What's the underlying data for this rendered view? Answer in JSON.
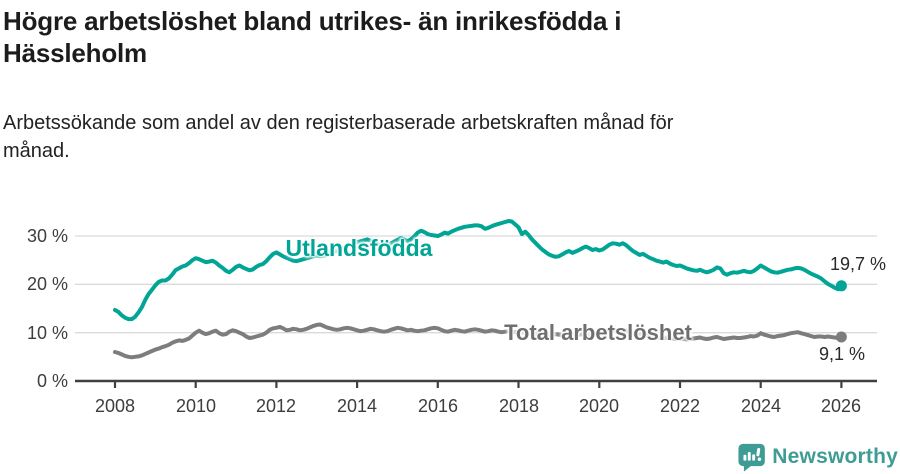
{
  "header": {
    "title_lines": [
      "Högre arbetslöshet bland utrikes- än inrikesfödda i",
      "Hässleholm"
    ],
    "subtitle_lines": [
      "Arbetssökande som andel av den registerbaserade arbetskraften månad för",
      "månad."
    ]
  },
  "chart_data": {
    "type": "line",
    "title": "Högre arbetslöshet bland utrikes- än inrikesfödda i Hässleholm",
    "subtitle": "Arbetssökande som andel av den registerbaserade arbetskraften månad för månad.",
    "unit": "%",
    "x_start": "2008-01",
    "x_end": "2026-01",
    "x_interval": "monthly",
    "ylim": [
      0,
      35
    ],
    "grid": "horizontal",
    "legend_position": "inline-labels",
    "y_ticks": [
      0,
      10,
      20,
      30
    ],
    "y_tick_labels": [
      "0 %",
      "10 %",
      "20 %",
      "30 %"
    ],
    "x_tick_years": [
      2008,
      2010,
      2012,
      2014,
      2016,
      2018,
      2020,
      2022,
      2024,
      2026
    ],
    "x_tick_labels": [
      "2008",
      "2010",
      "2012",
      "2014",
      "2016",
      "2018",
      "2020",
      "2022",
      "2024",
      "2026"
    ],
    "series": [
      {
        "name": "Utlandsfödda",
        "color": "#00a596",
        "end_value": 19.7,
        "end_label": "19,7 %",
        "values": [
          14.7,
          14.3,
          13.6,
          13.1,
          12.8,
          12.8,
          13.3,
          14.2,
          15.3,
          16.8,
          18.0,
          18.9,
          19.8,
          20.5,
          20.8,
          20.8,
          21.2,
          22.0,
          22.9,
          23.3,
          23.7,
          23.9,
          24.4,
          25.0,
          25.4,
          25.2,
          24.9,
          24.6,
          24.7,
          24.9,
          24.5,
          23.9,
          23.4,
          22.8,
          22.5,
          23.0,
          23.6,
          23.9,
          23.5,
          23.2,
          22.9,
          23.1,
          23.6,
          24.0,
          24.2,
          24.8,
          25.6,
          26.3,
          26.6,
          26.2,
          25.8,
          25.5,
          25.2,
          24.9,
          24.8,
          25.0,
          25.2,
          25.4,
          25.6,
          25.8,
          26.0,
          25.8,
          25.9,
          26.1,
          26.4,
          26.7,
          27.0,
          27.3,
          27.5,
          27.8,
          28.1,
          28.4,
          28.7,
          28.9,
          29.1,
          29.3,
          29.0,
          28.7,
          28.3,
          28.0,
          27.9,
          28.1,
          28.5,
          28.8,
          29.2,
          29.6,
          29.3,
          28.9,
          29.3,
          29.9,
          30.7,
          31.1,
          30.8,
          30.4,
          30.2,
          30.1,
          30.0,
          30.3,
          30.7,
          30.5,
          30.9,
          31.2,
          31.5,
          31.7,
          31.9,
          32.0,
          32.1,
          32.2,
          32.2,
          32.0,
          31.5,
          31.7,
          32.0,
          32.3,
          32.5,
          32.7,
          32.9,
          33.1,
          33.0,
          32.4,
          31.8,
          30.4,
          30.9,
          30.2,
          29.3,
          28.6,
          27.9,
          27.2,
          26.7,
          26.2,
          25.9,
          25.7,
          25.8,
          26.2,
          26.6,
          26.9,
          26.5,
          26.8,
          27.1,
          27.5,
          27.8,
          27.5,
          27.1,
          27.3,
          27.0,
          27.2,
          27.7,
          28.2,
          28.5,
          28.4,
          28.2,
          28.5,
          28.1,
          27.5,
          26.9,
          26.5,
          26.1,
          26.3,
          25.9,
          25.5,
          25.2,
          24.9,
          24.7,
          24.5,
          24.7,
          24.3,
          24.0,
          23.8,
          23.9,
          23.6,
          23.3,
          23.1,
          22.9,
          22.8,
          23.0,
          22.7,
          22.5,
          22.7,
          23.0,
          23.5,
          23.3,
          22.3,
          22.0,
          22.3,
          22.5,
          22.4,
          22.6,
          22.8,
          22.6,
          22.5,
          22.8,
          23.3,
          23.9,
          23.5,
          23.1,
          22.7,
          22.5,
          22.4,
          22.6,
          22.8,
          23.0,
          23.1,
          23.3,
          23.4,
          23.3,
          23.0,
          22.6,
          22.2,
          21.9,
          21.6,
          21.2,
          20.6,
          20.1,
          19.7,
          19.3,
          19.0,
          19.7
        ]
      },
      {
        "name": "Total arbetslöshet",
        "color": "#7d7d7d",
        "end_value": 9.1,
        "end_label": "9,1 %",
        "values": [
          6.0,
          5.8,
          5.5,
          5.2,
          5.0,
          4.9,
          5.0,
          5.1,
          5.3,
          5.6,
          5.9,
          6.2,
          6.5,
          6.7,
          7.0,
          7.2,
          7.5,
          7.9,
          8.2,
          8.4,
          8.3,
          8.5,
          8.8,
          9.4,
          10.0,
          10.4,
          10.0,
          9.7,
          9.9,
          10.2,
          10.4,
          9.9,
          9.6,
          9.7,
          10.2,
          10.5,
          10.3,
          10.0,
          9.7,
          9.2,
          8.9,
          9.0,
          9.2,
          9.4,
          9.6,
          10.0,
          10.6,
          10.9,
          11.0,
          11.2,
          10.9,
          10.5,
          10.6,
          10.8,
          10.7,
          10.5,
          10.6,
          10.8,
          11.1,
          11.4,
          11.6,
          11.7,
          11.4,
          11.1,
          10.9,
          10.7,
          10.6,
          10.7,
          10.9,
          11.0,
          10.9,
          10.7,
          10.5,
          10.3,
          10.4,
          10.6,
          10.8,
          10.7,
          10.5,
          10.3,
          10.2,
          10.3,
          10.6,
          10.8,
          11.0,
          10.9,
          10.7,
          10.5,
          10.6,
          10.4,
          10.3,
          10.4,
          10.5,
          10.7,
          10.9,
          11.0,
          10.9,
          10.6,
          10.3,
          10.2,
          10.4,
          10.6,
          10.5,
          10.3,
          10.2,
          10.4,
          10.6,
          10.7,
          10.6,
          10.4,
          10.2,
          10.3,
          10.5,
          10.4,
          10.2,
          10.1,
          10.2,
          10.3,
          10.2,
          10.1,
          10.2,
          10.1,
          9.9,
          9.8,
          9.7,
          9.8,
          9.9,
          9.8,
          9.6,
          9.5,
          9.6,
          9.7,
          9.6,
          9.5,
          9.4,
          9.5,
          9.6,
          9.5,
          9.6,
          9.7,
          9.6,
          9.5,
          9.6,
          9.7,
          9.8,
          9.9,
          10.2,
          10.5,
          10.6,
          10.5,
          10.4,
          10.5,
          10.3,
          10.1,
          9.9,
          9.8,
          9.7,
          9.8,
          9.6,
          9.4,
          9.3,
          9.1,
          9.0,
          8.9,
          9.0,
          8.9,
          8.8,
          8.7,
          8.8,
          8.7,
          8.6,
          8.7,
          8.8,
          8.9,
          9.0,
          8.8,
          8.7,
          8.8,
          9.0,
          9.1,
          8.9,
          8.7,
          8.8,
          8.9,
          9.0,
          8.9,
          8.9,
          9.0,
          9.1,
          9.3,
          9.2,
          9.4,
          9.9,
          9.6,
          9.4,
          9.2,
          9.1,
          9.3,
          9.4,
          9.5,
          9.7,
          9.9,
          10.0,
          10.1,
          9.9,
          9.7,
          9.5,
          9.3,
          9.1,
          9.2,
          9.2,
          9.1,
          9.2,
          9.1,
          9.0,
          8.9,
          9.1
        ]
      }
    ]
  },
  "colors": {
    "accent_teal": "#00a596",
    "series_gray": "#7d7d7d",
    "axis": "#404040",
    "gridline": "#dadada",
    "text_dark": "#1c1c1c",
    "brand_teal": "#3f9c95"
  },
  "footer": {
    "brand": "Newsworthy",
    "logo_icon": "bar-chart-speech-bubble-icon"
  }
}
